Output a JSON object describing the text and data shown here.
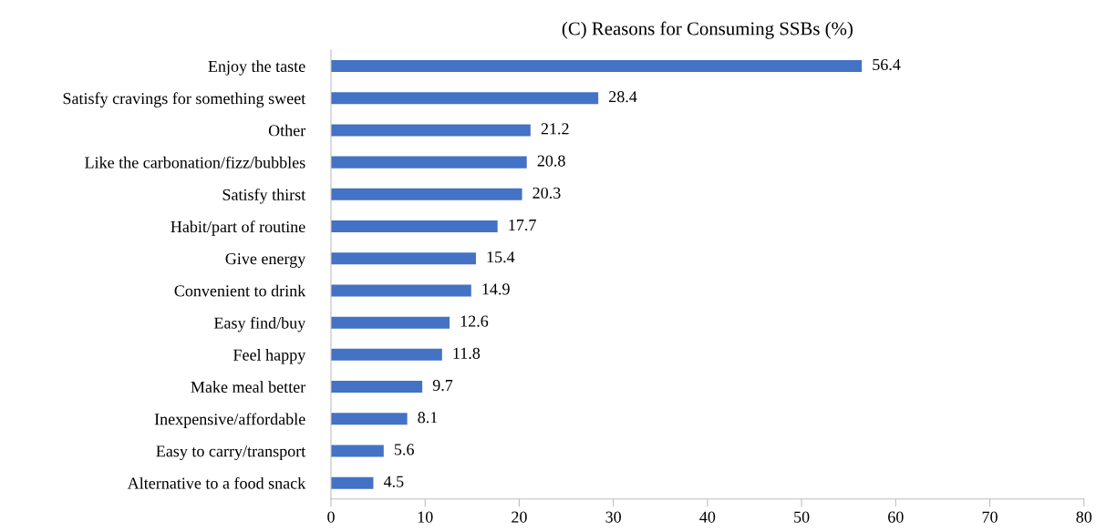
{
  "chart_data": {
    "type": "bar",
    "orientation": "horizontal",
    "title": "(C) Reasons for Consuming SSBs (%)",
    "categories": [
      "Enjoy the taste",
      "Satisfy cravings for something sweet",
      "Other",
      "Like the carbonation/fizz/bubbles",
      "Satisfy thirst",
      "Habit/part of routine",
      "Give energy",
      "Convenient to drink",
      "Easy find/buy",
      "Feel happy",
      "Make meal better",
      "Inexpensive/affordable",
      "Easy to carry/transport",
      "Alternative to a food snack"
    ],
    "values": [
      56.4,
      28.4,
      21.2,
      20.8,
      20.3,
      17.7,
      15.4,
      14.9,
      12.6,
      11.8,
      9.7,
      8.1,
      5.6,
      4.5
    ],
    "color": "#4472c4",
    "xlim": [
      0,
      80
    ],
    "xticks": [
      0,
      10,
      20,
      30,
      40,
      50,
      60,
      70,
      80
    ],
    "data_labels": true,
    "grid": false,
    "legend": false
  }
}
